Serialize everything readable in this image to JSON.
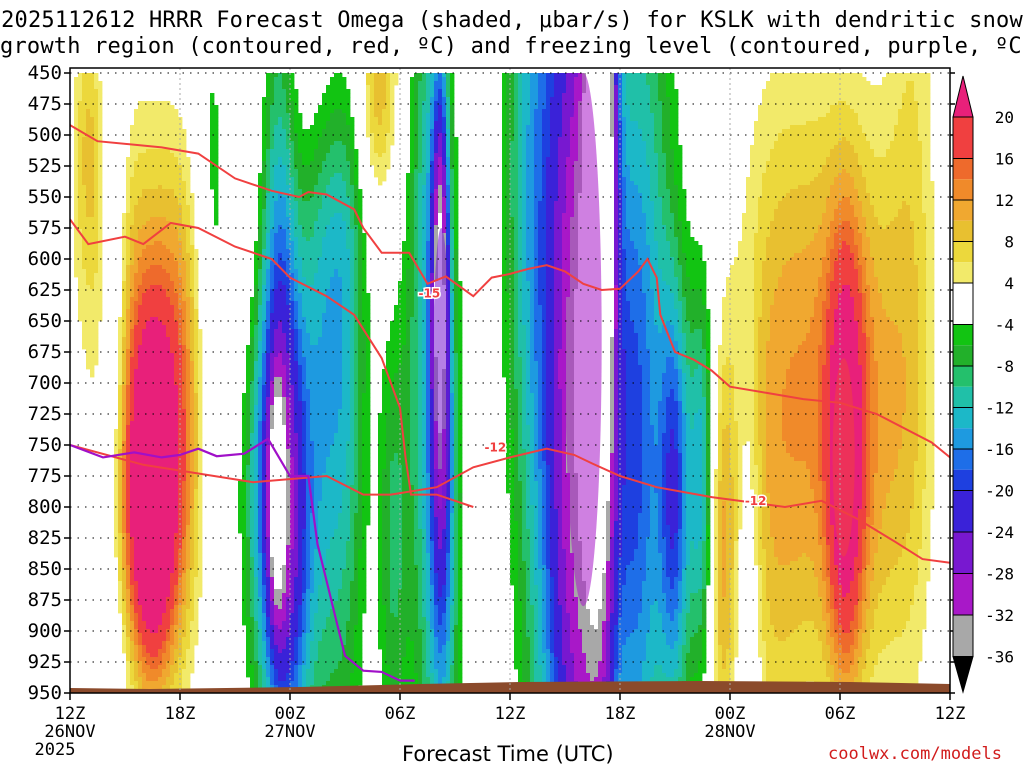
{
  "title_line1": "2025112612 HRRR Forecast Omega (shaded, μbar/s) for KSLK with dendritic snow",
  "title_line2": "growth region (contoured, red, ºC) and freezing level (contoured, purple, ºC)",
  "xaxis_title": "Forecast Time (UTC)",
  "watermark": "coolwx.com/models",
  "chart_data": {
    "type": "heatmap",
    "y_label": "pressure (mb)",
    "y_levels": [
      450,
      475,
      500,
      525,
      550,
      575,
      600,
      625,
      650,
      675,
      700,
      725,
      750,
      775,
      800,
      825,
      850,
      875,
      900,
      925,
      950
    ],
    "x_range_hours": [
      0,
      48
    ],
    "x_ticks": [
      {
        "hour": 0,
        "label": "12Z",
        "sub": "26NOV",
        "sub2": "2025"
      },
      {
        "hour": 6,
        "label": "18Z",
        "sub": "",
        "sub2": ""
      },
      {
        "hour": 12,
        "label": "00Z",
        "sub": "27NOV",
        "sub2": ""
      },
      {
        "hour": 18,
        "label": "06Z",
        "sub": "",
        "sub2": ""
      },
      {
        "hour": 24,
        "label": "12Z",
        "sub": "",
        "sub2": ""
      },
      {
        "hour": 30,
        "label": "18Z",
        "sub": "",
        "sub2": ""
      },
      {
        "hour": 36,
        "label": "00Z",
        "sub": "28NOV",
        "sub2": ""
      },
      {
        "hour": 42,
        "label": "06Z",
        "sub": "",
        "sub2": ""
      },
      {
        "hour": 48,
        "label": "12Z",
        "sub": "",
        "sub2": ""
      }
    ],
    "colorbar": {
      "labels": [
        20,
        16,
        12,
        8,
        4,
        -4,
        -8,
        -12,
        -16,
        -20,
        -24,
        -28,
        -32,
        -36
      ],
      "bins": [
        {
          "lo": 20,
          "hi": 24,
          "color": "#e8207a"
        },
        {
          "lo": 16,
          "hi": 20,
          "color": "#f04040"
        },
        {
          "lo": 14,
          "hi": 16,
          "color": "#ee6a2c"
        },
        {
          "lo": 12,
          "hi": 14,
          "color": "#f08a2a"
        },
        {
          "lo": 10,
          "hi": 12,
          "color": "#f0a830"
        },
        {
          "lo": 8,
          "hi": 10,
          "color": "#e8c030"
        },
        {
          "lo": 6,
          "hi": 8,
          "color": "#ecd83c"
        },
        {
          "lo": 4,
          "hi": 6,
          "color": "#f2ea6a"
        },
        {
          "lo": -4,
          "hi": 4,
          "color": "#ffffff"
        },
        {
          "lo": -6,
          "hi": -4,
          "color": "#12c412"
        },
        {
          "lo": -8,
          "hi": -6,
          "color": "#22b02a"
        },
        {
          "lo": -10,
          "hi": -8,
          "color": "#24c06c"
        },
        {
          "lo": -12,
          "hi": -10,
          "color": "#20c0a8"
        },
        {
          "lo": -14,
          "hi": -12,
          "color": "#1cb8c8"
        },
        {
          "lo": -16,
          "hi": -14,
          "color": "#1e9ae0"
        },
        {
          "lo": -18,
          "hi": -16,
          "color": "#1e6ee8"
        },
        {
          "lo": -20,
          "hi": -18,
          "color": "#1e40e0"
        },
        {
          "lo": -24,
          "hi": -20,
          "color": "#3a22d8"
        },
        {
          "lo": -28,
          "hi": -24,
          "color": "#7818d0"
        },
        {
          "lo": -32,
          "hi": -28,
          "color": "#a818c8"
        },
        {
          "lo": -36,
          "hi": -32,
          "color": "#a8a8a8"
        }
      ]
    },
    "omega_regions": [
      {
        "name": "omega-max-positive",
        "value": 22,
        "x_hours": [
          3.8,
          5.0
        ],
        "p_mb": [
          720,
          885
        ]
      },
      {
        "name": "omega-max-negative",
        "value": -30,
        "x_hours": [
          27.0,
          29.0
        ],
        "p_mb": [
          450,
          880
        ]
      },
      {
        "name": "omega-min-column",
        "value": -26,
        "x_hours": [
          19.8,
          20.7
        ],
        "p_mb": [
          575,
          820
        ]
      },
      {
        "name": "omega-pos-late",
        "value": 18,
        "x_hours": [
          41.6,
          42.8
        ],
        "p_mb": [
          680,
          840
        ]
      }
    ],
    "isotherms": [
      {
        "name": "dgz-minus-12-lower",
        "label": "-12",
        "label_at": [
          {
            "hour": 23.2,
            "p": 752
          },
          {
            "hour": 37.4,
            "p": 795
          }
        ],
        "points": [
          [
            0,
            750
          ],
          [
            4,
            766
          ],
          [
            10,
            780
          ],
          [
            14,
            775
          ],
          [
            16,
            790
          ],
          [
            17.5,
            790
          ],
          [
            20,
            784
          ],
          [
            22,
            768
          ],
          [
            24,
            760
          ],
          [
            26,
            753
          ],
          [
            27.5,
            758
          ],
          [
            28.5,
            765
          ],
          [
            30,
            775
          ],
          [
            32,
            784
          ],
          [
            35,
            792
          ],
          [
            37,
            796
          ],
          [
            39,
            800
          ],
          [
            41,
            795
          ],
          [
            43,
            810
          ],
          [
            45,
            828
          ],
          [
            46.5,
            842
          ],
          [
            48,
            845
          ]
        ]
      },
      {
        "name": "dgz-minus-15-upper",
        "label": "-15",
        "label_at": [
          {
            "hour": 19.6,
            "p": 628
          }
        ],
        "points": [
          [
            0,
            492
          ],
          [
            1.5,
            505
          ],
          [
            5,
            510
          ],
          [
            7,
            515
          ],
          [
            9,
            535
          ],
          [
            11,
            545
          ],
          [
            12.5,
            550
          ],
          [
            13,
            546
          ],
          [
            14,
            548
          ],
          [
            15.5,
            560
          ],
          [
            16,
            575
          ],
          [
            17,
            595
          ],
          [
            18.5,
            595
          ],
          [
            19.5,
            620
          ],
          [
            20.5,
            614
          ],
          [
            22,
            630
          ],
          [
            23,
            615
          ],
          [
            24,
            612
          ],
          [
            25,
            608
          ],
          [
            26,
            605
          ],
          [
            27,
            610
          ],
          [
            28,
            620
          ],
          [
            29,
            625
          ],
          [
            30,
            624
          ],
          [
            31,
            610
          ],
          [
            31.5,
            600
          ],
          [
            32,
            615
          ],
          [
            32.2,
            645
          ],
          [
            33,
            675
          ],
          [
            34,
            681
          ],
          [
            35,
            690
          ],
          [
            36,
            703
          ],
          [
            38,
            708
          ],
          [
            40,
            713
          ],
          [
            42,
            716
          ],
          [
            44,
            725
          ],
          [
            47,
            748
          ],
          [
            48,
            760
          ]
        ]
      },
      {
        "name": "dgz-minus-15-loop",
        "label": "",
        "label_at": [],
        "points": [
          [
            0,
            568
          ],
          [
            1,
            588
          ],
          [
            3,
            582
          ],
          [
            4,
            588
          ],
          [
            5.5,
            571
          ],
          [
            7,
            575
          ],
          [
            9,
            590
          ],
          [
            11,
            600
          ],
          [
            12,
            615
          ],
          [
            14,
            630
          ],
          [
            15.5,
            645
          ],
          [
            17,
            680
          ],
          [
            18,
            720
          ],
          [
            18.3,
            760
          ],
          [
            18.6,
            790
          ],
          [
            20,
            790
          ],
          [
            22,
            800
          ]
        ]
      }
    ],
    "freezing_level": {
      "name": "freezing-level-0C",
      "points": [
        [
          0,
          750
        ],
        [
          1.8,
          760
        ],
        [
          3.5,
          756
        ],
        [
          5,
          760
        ],
        [
          6,
          758
        ],
        [
          7,
          753
        ],
        [
          8,
          759
        ],
        [
          9.5,
          757
        ],
        [
          10.8,
          745
        ],
        [
          12,
          775
        ],
        [
          13,
          775
        ],
        [
          13.5,
          830
        ],
        [
          14,
          860
        ],
        [
          14.5,
          890
        ],
        [
          15,
          920
        ],
        [
          16,
          932
        ],
        [
          17,
          933
        ],
        [
          18,
          940
        ],
        [
          18.8,
          940
        ]
      ]
    }
  }
}
